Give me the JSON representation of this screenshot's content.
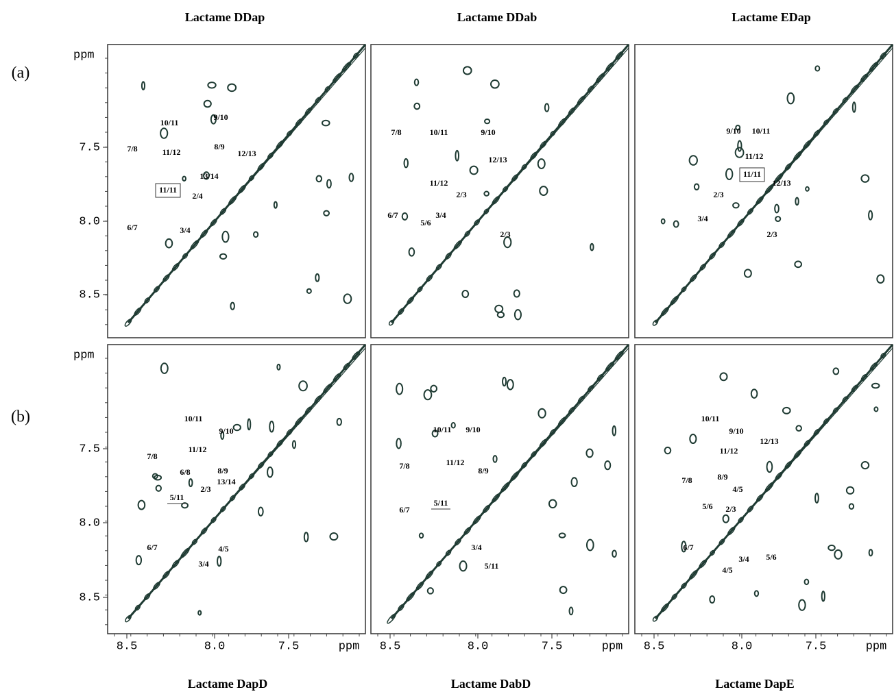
{
  "columns": [
    {
      "title": "Lactame DDap"
    },
    {
      "title": "Lactame DDab"
    },
    {
      "title": "Lactame EDap"
    }
  ],
  "bottom_titles": [
    "Lactame DapD",
    "Lactame DabD",
    "Lactame DapE"
  ],
  "rows": [
    {
      "label": "(a)"
    },
    {
      "label": "(b)"
    }
  ],
  "axis": {
    "unit": "ppm",
    "ticks": [
      "7.5",
      "8.0",
      "8.5"
    ]
  },
  "panels": [
    {
      "labels": [
        "10/11",
        "9/10",
        "7/8",
        "11/12",
        "8/9",
        "12/13",
        "13/14",
        "11/11",
        "2/4",
        "6/7",
        "3/4"
      ]
    },
    {
      "labels": [
        "7/8",
        "10/11",
        "9/10",
        "12/13",
        "11/12",
        "2/3",
        "6/7",
        "3/4",
        "5/6",
        "2/3"
      ]
    },
    {
      "labels": [
        "9/10",
        "10/11",
        "11/12",
        "11/11",
        "12/13",
        "2/3",
        "3/4",
        "2/3"
      ]
    },
    {
      "labels": [
        "10/11",
        "9/10",
        "11/12",
        "7/8",
        "6/8",
        "8/9",
        "2/3",
        "13/14",
        "5/11",
        "6/7",
        "4/5",
        "3/4"
      ]
    },
    {
      "labels": [
        "10/11",
        "9/10",
        "11/12",
        "7/8",
        "8/9",
        "5/11",
        "6/7",
        "3/4",
        "5/11"
      ]
    },
    {
      "labels": [
        "10/11",
        "9/10",
        "11/12",
        "12/13",
        "7/8",
        "8/9",
        "4/5",
        "5/6",
        "2/3",
        "6/7",
        "3/4",
        "5/6",
        "4/5"
      ]
    }
  ]
}
